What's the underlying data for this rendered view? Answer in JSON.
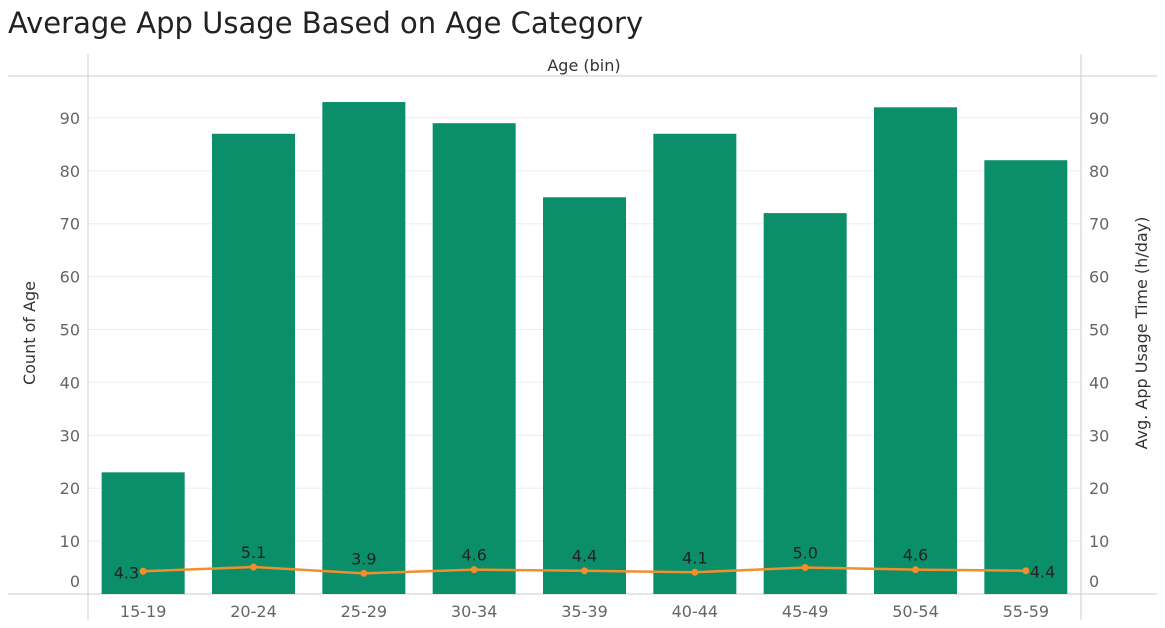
{
  "title": "Average App Usage Based on Age Category",
  "colors": {
    "bar": "#0a8f6a",
    "line": "#f28e2b",
    "grid": "#eeeeee",
    "axis": "#cccccc"
  },
  "chart_data": {
    "type": "bar",
    "title": "Average App Usage Based on Age Category",
    "xlabel": "Age (bin)",
    "ylabel": "Count of Age",
    "y2label": "Avg. App Usage Time (h/day)",
    "categories": [
      "15-19",
      "20-24",
      "25-29",
      "30-34",
      "35-39",
      "40-44",
      "45-49",
      "50-54",
      "55-59"
    ],
    "ylim": [
      0,
      97
    ],
    "y2lim": [
      0,
      97
    ],
    "yticks": [
      0,
      10,
      20,
      30,
      40,
      50,
      60,
      70,
      80,
      90
    ],
    "series": [
      {
        "type": "bar",
        "values": [
          23,
          87,
          93,
          89,
          75,
          87,
          72,
          92,
          82
        ]
      },
      {
        "type": "line",
        "values": [
          4.3,
          5.1,
          3.9,
          4.6,
          4.4,
          4.1,
          5.0,
          4.6,
          4.4
        ],
        "labels": [
          "4.3",
          "5.1",
          "3.9",
          "4.6",
          "4.4",
          "4.1",
          "5.0",
          "4.6",
          "4.4"
        ]
      }
    ]
  }
}
